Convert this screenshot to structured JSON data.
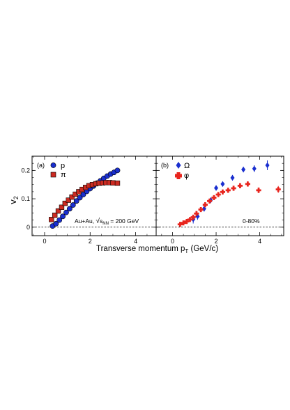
{
  "figure": {
    "xlabel": "Transverse momentum p",
    "xlabel_sub": "T",
    "xlabel_unit": " (GeV/c)",
    "ylabel": "v",
    "ylabel_sub": "2"
  },
  "chart_data": [
    {
      "type": "scatter",
      "panel_label": "(a)",
      "annotation_prefix": "Au+Au, ",
      "annotation_sqrt": "s",
      "annotation_sub": "NN",
      "annotation_value": " = 200 GeV",
      "xlim": [
        -0.55,
        4.9
      ],
      "ylim": [
        -0.03,
        0.25
      ],
      "xticks": [
        0,
        2,
        4
      ],
      "yticks": [
        0,
        0.1,
        0.2
      ],
      "xtick_labels": [
        "0",
        "2",
        "4"
      ],
      "ytick_labels": [
        "0",
        "0.1",
        "0.2"
      ],
      "zero_line": "dashed",
      "legend": "top-left",
      "series": [
        {
          "name": "p",
          "marker": "circle",
          "color": "#1a2fcf",
          "x": [
            0.35,
            0.5,
            0.65,
            0.8,
            0.95,
            1.1,
            1.25,
            1.4,
            1.55,
            1.7,
            1.85,
            2.0,
            2.15,
            2.3,
            2.45,
            2.6,
            2.75,
            2.9,
            3.05,
            3.2
          ],
          "y": [
            0.004,
            0.012,
            0.025,
            0.038,
            0.052,
            0.065,
            0.078,
            0.092,
            0.104,
            0.115,
            0.126,
            0.136,
            0.145,
            0.155,
            0.163,
            0.172,
            0.18,
            0.187,
            0.193,
            0.2
          ]
        },
        {
          "name": "π",
          "marker": "square",
          "color": "#cc2b22",
          "x": [
            0.3,
            0.45,
            0.6,
            0.75,
            0.9,
            1.05,
            1.2,
            1.35,
            1.5,
            1.65,
            1.8,
            1.95,
            2.1,
            2.25,
            2.4,
            2.55,
            2.7,
            2.85,
            3.0,
            3.2
          ],
          "y": [
            0.027,
            0.042,
            0.057,
            0.07,
            0.084,
            0.095,
            0.106,
            0.116,
            0.125,
            0.133,
            0.14,
            0.146,
            0.15,
            0.153,
            0.155,
            0.156,
            0.157,
            0.157,
            0.156,
            0.155
          ]
        }
      ]
    },
    {
      "type": "scatter",
      "panel_label": "(b)",
      "annotation": "0-80%",
      "xlim": [
        -0.75,
        5.1
      ],
      "ylim": [
        -0.03,
        0.25
      ],
      "xticks": [
        0,
        2,
        4
      ],
      "yticks": [
        0,
        0.1,
        0.2
      ],
      "xtick_labels": [
        "0",
        "2",
        "4"
      ],
      "zero_line": "dashed",
      "legend": "top-left",
      "series": [
        {
          "name": "Ω",
          "marker": "diamond",
          "color": "#1a2fcf",
          "x": [
            0.95,
            1.15,
            1.45,
            1.75,
            2.0,
            2.3,
            2.75,
            3.25,
            3.75,
            4.35
          ],
          "y": [
            0.028,
            0.038,
            0.065,
            0.095,
            0.138,
            0.152,
            0.174,
            0.203,
            0.206,
            0.218
          ],
          "yerr": [
            0.015,
            0.012,
            0.01,
            0.009,
            0.009,
            0.009,
            0.01,
            0.01,
            0.012,
            0.017
          ]
        },
        {
          "name": "φ",
          "marker": "cross",
          "color": "#e8251e",
          "x": [
            0.35,
            0.5,
            0.65,
            0.8,
            0.95,
            1.1,
            1.3,
            1.5,
            1.7,
            1.9,
            2.1,
            2.3,
            2.55,
            2.8,
            3.1,
            3.45,
            3.95,
            4.85
          ],
          "y": [
            0.01,
            0.015,
            0.02,
            0.027,
            0.035,
            0.048,
            0.062,
            0.079,
            0.092,
            0.104,
            0.115,
            0.124,
            0.13,
            0.137,
            0.146,
            0.152,
            0.13,
            0.133
          ],
          "yerr": [
            0.003,
            0.003,
            0.003,
            0.004,
            0.004,
            0.004,
            0.004,
            0.005,
            0.005,
            0.005,
            0.006,
            0.006,
            0.006,
            0.007,
            0.008,
            0.009,
            0.01,
            0.012
          ]
        }
      ]
    }
  ]
}
